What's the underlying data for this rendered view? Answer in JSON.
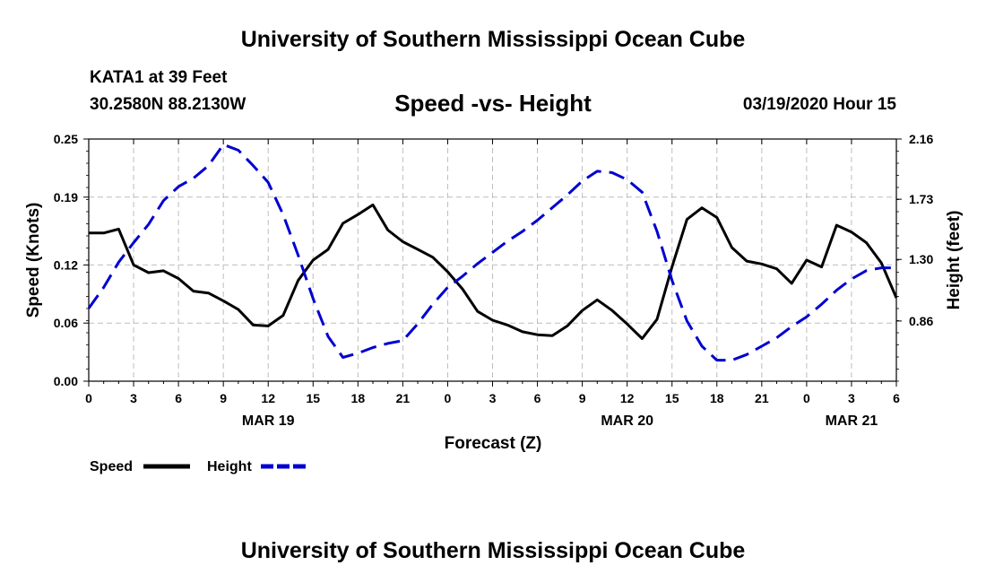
{
  "header": {
    "title": "University of Southern Mississippi Ocean Cube",
    "station": "KATA1 at 39 Feet",
    "coords": "30.2580N 88.2130W",
    "subtitle": "Speed -vs- Height",
    "run_time": "03/19/2020 Hour 15"
  },
  "footer": {
    "title": "University of Southern Mississippi Ocean Cube"
  },
  "chart_data": {
    "type": "line",
    "title": "Speed -vs- Height",
    "xlabel": "Forecast (Z)",
    "ylabel": "Speed (Knots)",
    "y2label": "Height (feet)",
    "x_ticks": [
      "0",
      "3",
      "6",
      "9",
      "12",
      "15",
      "18",
      "21",
      "0",
      "3",
      "6",
      "9",
      "12",
      "15",
      "18",
      "21",
      "0",
      "3",
      "6"
    ],
    "date_labels": [
      {
        "label": "MAR 19",
        "hour": 12
      },
      {
        "label": "MAR 20",
        "hour": 36
      },
      {
        "label": "MAR 21",
        "hour": 51
      }
    ],
    "xlim": [
      0,
      54
    ],
    "ylim": [
      0,
      0.25
    ],
    "y_ticks": [
      "0.00",
      "0.06",
      "0.12",
      "0.19",
      "0.25"
    ],
    "y2lim": [
      0.43,
      2.16
    ],
    "y2_ticks": [
      "0.86",
      "1.30",
      "1.73",
      "2.16"
    ],
    "grid": true,
    "series": [
      {
        "name": "Speed",
        "axis": "left",
        "color": "#000000",
        "style": "solid",
        "x": [
          0,
          1,
          2,
          3,
          4,
          5,
          6,
          7,
          8,
          9,
          10,
          11,
          12,
          13,
          14,
          15,
          16,
          17,
          18,
          19,
          20,
          21,
          22,
          23,
          24,
          25,
          26,
          27,
          28,
          29,
          30,
          31,
          32,
          33,
          34,
          35,
          36,
          37,
          38,
          39,
          40,
          41,
          42,
          43,
          44,
          45,
          46,
          47,
          48,
          49,
          50,
          51,
          52,
          53,
          54
        ],
        "values": [
          0.153,
          0.153,
          0.157,
          0.12,
          0.112,
          0.114,
          0.106,
          0.093,
          0.091,
          0.083,
          0.074,
          0.058,
          0.057,
          0.068,
          0.104,
          0.125,
          0.136,
          0.163,
          0.172,
          0.182,
          0.156,
          0.144,
          0.136,
          0.128,
          0.113,
          0.095,
          0.072,
          0.063,
          0.058,
          0.051,
          0.048,
          0.047,
          0.057,
          0.073,
          0.084,
          0.073,
          0.059,
          0.044,
          0.064,
          0.118,
          0.167,
          0.179,
          0.169,
          0.138,
          0.124,
          0.121,
          0.116,
          0.101,
          0.125,
          0.118,
          0.161,
          0.154,
          0.143,
          0.122,
          0.086
        ]
      },
      {
        "name": "Height",
        "axis": "right",
        "color": "#0000d0",
        "style": "dashed",
        "x": [
          0,
          1,
          2,
          3,
          4,
          5,
          6,
          7,
          8,
          9,
          10,
          11,
          12,
          13,
          14,
          15,
          16,
          17,
          18,
          19,
          20,
          21,
          22,
          23,
          24,
          25,
          26,
          27,
          28,
          29,
          30,
          31,
          32,
          33,
          34,
          35,
          36,
          37,
          38,
          39,
          40,
          41,
          42,
          43,
          44,
          45,
          46,
          47,
          48,
          49,
          50,
          51,
          52,
          53,
          54
        ],
        "values": [
          0.95,
          1.1,
          1.28,
          1.42,
          1.55,
          1.72,
          1.82,
          1.88,
          1.97,
          2.12,
          2.08,
          1.97,
          1.85,
          1.62,
          1.33,
          1.02,
          0.75,
          0.6,
          0.63,
          0.67,
          0.7,
          0.72,
          0.84,
          0.98,
          1.1,
          1.18,
          1.27,
          1.35,
          1.43,
          1.5,
          1.58,
          1.67,
          1.76,
          1.86,
          1.93,
          1.92,
          1.87,
          1.78,
          1.5,
          1.15,
          0.86,
          0.68,
          0.58,
          0.58,
          0.62,
          0.68,
          0.74,
          0.82,
          0.89,
          0.98,
          1.08,
          1.16,
          1.22,
          1.24,
          1.24
        ]
      }
    ],
    "legend": [
      {
        "label": "Speed",
        "series": "Speed"
      },
      {
        "label": "Height",
        "series": "Height"
      }
    ],
    "legend_position": "bottom-left"
  }
}
